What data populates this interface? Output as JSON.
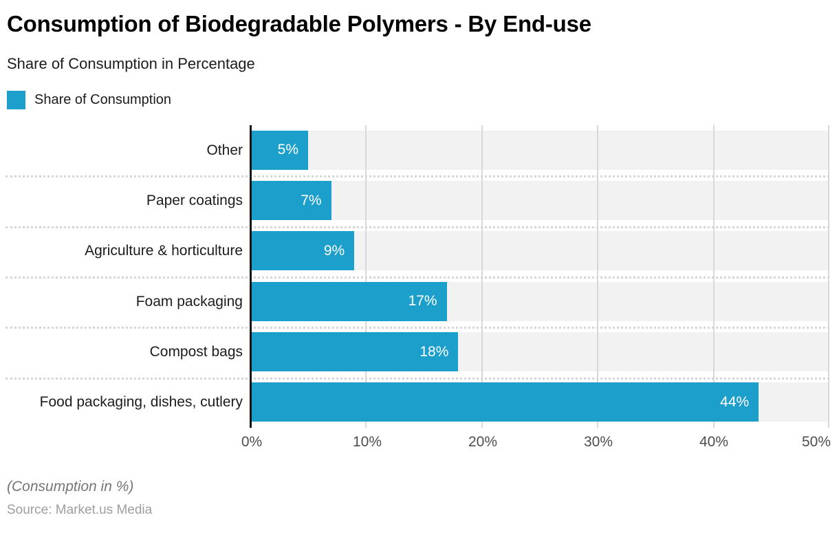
{
  "header": {
    "title": "Consumption of Biodegradable Polymers - By End-use",
    "subtitle": "Share of Consumption in Percentage"
  },
  "legend": {
    "label": "Share of Consumption",
    "swatch_color": "#1d9fcc"
  },
  "chart_data": {
    "type": "bar",
    "orientation": "horizontal",
    "title": "Consumption of Biodegradable Polymers - By End-use",
    "subtitle": "Share of Consumption in Percentage",
    "series_name": "Share of Consumption",
    "categories": [
      "Other",
      "Paper coatings",
      "Agriculture & horticulture",
      "Foam packaging",
      "Compost bags",
      "Food packaging, dishes, cutlery"
    ],
    "values": [
      5,
      7,
      9,
      17,
      18,
      44
    ],
    "value_labels": [
      "5%",
      "7%",
      "9%",
      "17%",
      "18%",
      "44%"
    ],
    "x_ticks": [
      "0%",
      "10%",
      "20%",
      "30%",
      "40%",
      "50%"
    ],
    "xlim": [
      0,
      50
    ],
    "xlabel": "",
    "ylabel": "",
    "grid": true,
    "legend_position": "top-left",
    "bar_color": "#1d9fcc",
    "track_color": "#f2f2f2",
    "axis_line_color": "#141414",
    "value_label_color": "#ffffff"
  },
  "footer": {
    "note": "(Consumption in %)",
    "source": "Source: Market.us Media"
  }
}
